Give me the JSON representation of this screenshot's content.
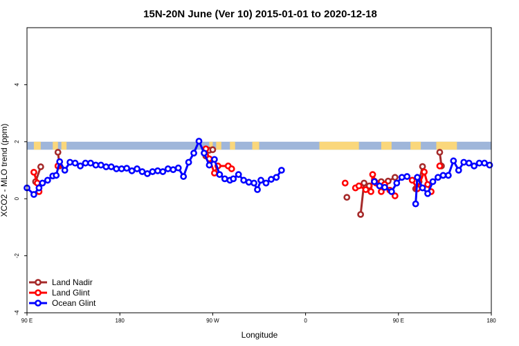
{
  "chart_data": {
    "type": "line",
    "title": "15N-20N June (Ver 10)   2015-01-01 to 2020-12-18",
    "xlabel": "Longitude",
    "ylabel": "XCO2 - MLO trend (ppm)",
    "xlim": [
      -90,
      180
    ],
    "ylim": [
      -4,
      6
    ],
    "x_ticks": [
      {
        "value": -90,
        "label": "90 E"
      },
      {
        "value": -36,
        "label": "180"
      },
      {
        "value": 18,
        "label": "90 W"
      },
      {
        "value": 72,
        "label": "0"
      },
      {
        "value": 126,
        "label": "90 E"
      },
      {
        "value": 180,
        "label": "180"
      }
    ],
    "y_ticks": [
      {
        "value": -4,
        "label": "-4"
      },
      {
        "value": -2,
        "label": "-2"
      },
      {
        "value": 0,
        "label": "0"
      },
      {
        "value": 2,
        "label": "2"
      },
      {
        "value": 4,
        "label": "4"
      }
    ],
    "grid": false,
    "legend_position": "bottom-left",
    "land_band": {
      "y_range": [
        1.72,
        2.0
      ],
      "ocean_color": "#9fb6da",
      "land_color": "#fad77b",
      "land_segments": [
        [
          -86,
          -82
        ],
        [
          -75,
          -72
        ],
        [
          -70,
          -67
        ],
        [
          16,
          18
        ],
        [
          20,
          23
        ],
        [
          28,
          31
        ],
        [
          41,
          45
        ],
        [
          80,
          103
        ],
        [
          116,
          122
        ],
        [
          133,
          139
        ],
        [
          148,
          160
        ]
      ]
    },
    "series": [
      {
        "name": "Land Nadir",
        "color": "#a52a2a",
        "segments": [
          [
            [
              -85,
              0.6
            ],
            [
              -82,
              1.12
            ]
          ],
          [
            [
              -72,
              1.63
            ],
            [
              -71,
              1.15
            ]
          ],
          [
            [
              14,
              1.5
            ],
            [
              16,
              1.7
            ],
            [
              18,
              1.72
            ]
          ],
          [
            [
              96,
              0.05
            ]
          ],
          [
            [
              104,
              -0.55
            ],
            [
              106,
              0.55
            ],
            [
              109,
              0.45
            ],
            [
              112,
              0.62
            ],
            [
              116,
              0.6
            ],
            [
              118,
              0.5
            ],
            [
              120,
              0.62
            ],
            [
              124,
              0.75
            ]
          ],
          [
            [
              136,
              0.35
            ],
            [
              138,
              0.6
            ],
            [
              140,
              1.13
            ]
          ],
          [
            [
              150,
              1.63
            ],
            [
              151,
              1.15
            ]
          ]
        ]
      },
      {
        "name": "Land Glint",
        "color": "#ff0000",
        "segments": [
          [
            [
              -86,
              0.93
            ],
            [
              -84,
              0.55
            ],
            [
              -83,
              0.25
            ]
          ],
          [
            [
              -72,
              1.15
            ]
          ],
          [
            [
              14,
              1.75
            ],
            [
              16,
              1.4
            ],
            [
              19,
              0.9
            ],
            [
              21,
              1.15
            ],
            [
              27,
              1.15
            ],
            [
              29,
              1.05
            ]
          ],
          [
            [
              95,
              0.55
            ]
          ],
          [
            [
              101,
              0.38
            ],
            [
              103,
              0.45
            ],
            [
              107,
              0.32
            ],
            [
              110,
              0.25
            ],
            [
              111,
              0.85
            ],
            [
              113,
              0.55
            ],
            [
              116,
              0.25
            ],
            [
              118,
              0.5
            ],
            [
              121,
              0.3
            ],
            [
              124,
              0.1
            ]
          ],
          [
            [
              134,
              0.65
            ],
            [
              137,
              0.35
            ],
            [
              141,
              0.94
            ],
            [
              143,
              0.5
            ],
            [
              145,
              0.25
            ]
          ],
          [
            [
              150,
              1.15
            ]
          ]
        ]
      },
      {
        "name": "Ocean Glint",
        "color": "#0000ff",
        "segments": [
          [
            [
              -90,
              0.38
            ],
            [
              -86,
              0.15
            ],
            [
              -83,
              0.38
            ],
            [
              -81,
              0.55
            ],
            [
              -78,
              0.65
            ],
            [
              -75,
              0.8
            ],
            [
              -73,
              0.82
            ],
            [
              -71,
              1.3
            ],
            [
              -68,
              1.0
            ],
            [
              -65,
              1.28
            ],
            [
              -62,
              1.25
            ],
            [
              -59,
              1.15
            ],
            [
              -56,
              1.25
            ],
            [
              -53,
              1.25
            ],
            [
              -50,
              1.18
            ],
            [
              -47,
              1.18
            ],
            [
              -44,
              1.12
            ],
            [
              -41,
              1.12
            ],
            [
              -38,
              1.05
            ],
            [
              -35,
              1.05
            ],
            [
              -32,
              1.07
            ],
            [
              -29,
              0.98
            ],
            [
              -26,
              1.05
            ],
            [
              -23,
              0.95
            ],
            [
              -20,
              0.88
            ],
            [
              -17,
              0.95
            ],
            [
              -14,
              0.98
            ],
            [
              -11,
              0.95
            ],
            [
              -8,
              1.05
            ],
            [
              -5,
              1.02
            ],
            [
              -2,
              1.08
            ],
            [
              1,
              0.78
            ],
            [
              4,
              1.28
            ],
            [
              7,
              1.6
            ],
            [
              10,
              2.02
            ],
            [
              13,
              1.6
            ],
            [
              16,
              1.18
            ],
            [
              19,
              1.38
            ],
            [
              22,
              0.85
            ],
            [
              25,
              0.7
            ],
            [
              28,
              0.65
            ],
            [
              30,
              0.7
            ],
            [
              33,
              0.85
            ],
            [
              36,
              0.65
            ],
            [
              39,
              0.58
            ],
            [
              42,
              0.55
            ],
            [
              44,
              0.32
            ],
            [
              46,
              0.65
            ],
            [
              49,
              0.55
            ],
            [
              52,
              0.68
            ],
            [
              55,
              0.75
            ],
            [
              58,
              1.0
            ]
          ],
          [
            [
              112,
              0.6
            ],
            [
              115,
              0.45
            ],
            [
              118,
              0.4
            ],
            [
              122,
              0.25
            ],
            [
              125,
              0.55
            ],
            [
              128,
              0.75
            ],
            [
              131,
              0.78
            ]
          ],
          [
            [
              136,
              -0.18
            ],
            [
              137,
              0.75
            ],
            [
              140,
              0.38
            ],
            [
              143,
              0.18
            ],
            [
              146,
              0.6
            ],
            [
              149,
              0.75
            ],
            [
              152,
              0.82
            ],
            [
              155,
              0.82
            ],
            [
              158,
              1.33
            ],
            [
              161,
              1.0
            ],
            [
              164,
              1.28
            ],
            [
              167,
              1.25
            ],
            [
              170,
              1.15
            ],
            [
              173,
              1.25
            ],
            [
              176,
              1.25
            ],
            [
              179,
              1.18
            ],
            [
              182,
              1.18
            ],
            [
              185,
              1.12
            ],
            [
              188,
              1.12
            ],
            [
              191,
              1.05
            ],
            [
              194,
              1.05
            ]
          ]
        ]
      }
    ]
  }
}
